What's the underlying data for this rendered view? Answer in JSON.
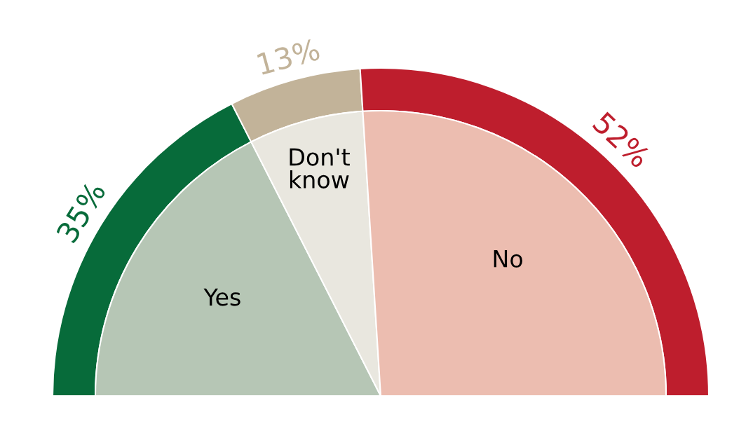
{
  "chart_data": {
    "type": "donut",
    "categories": [
      "Yes",
      "Don't know",
      "No"
    ],
    "series": [
      {
        "values": [
          35,
          13,
          52
        ],
        "colors": [
          "#076b3a",
          "#c2b399",
          "#be1e2d"
        ],
        "value_labels": [
          "35%",
          "13%",
          "52%"
        ]
      },
      {
        "values": [
          35,
          13,
          52
        ],
        "colors": [
          "#b6c6b5",
          "#e9e7df",
          "#ecbdb0"
        ]
      }
    ]
  }
}
